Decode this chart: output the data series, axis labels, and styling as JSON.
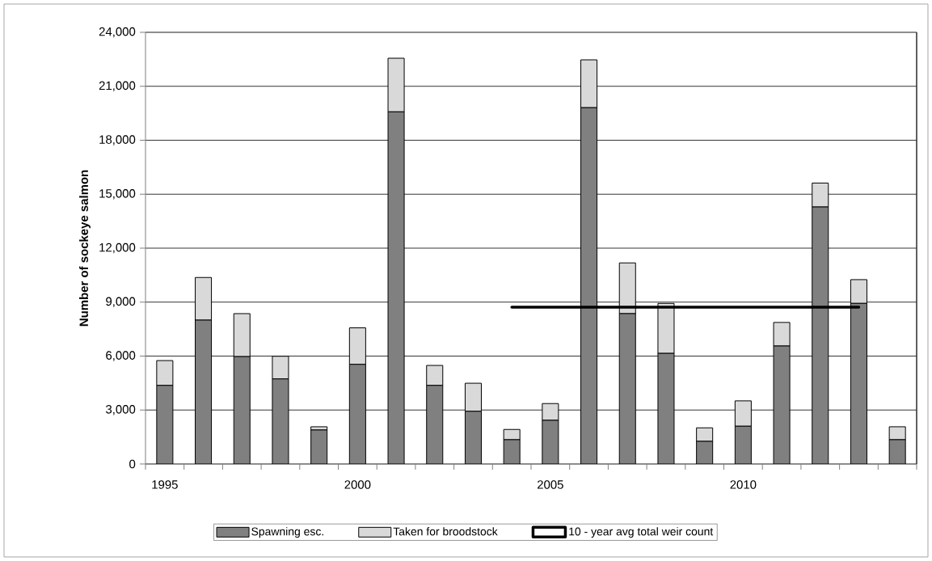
{
  "chart_data": {
    "type": "bar",
    "stacked": true,
    "ylabel": "Number of sockeye salmon",
    "categories": [
      "1995",
      null,
      null,
      null,
      null,
      "2000",
      null,
      null,
      null,
      null,
      "2005",
      null,
      null,
      null,
      null,
      "2010",
      null,
      null,
      null,
      null
    ],
    "series": [
      {
        "name": "Spawning esc.",
        "color": "#808080",
        "values": [
          4370,
          8000,
          5970,
          4730,
          1890,
          5540,
          19580,
          4370,
          2930,
          1350,
          2430,
          19810,
          8360,
          6150,
          1260,
          2100,
          6560,
          14290,
          8930,
          1350
        ]
      },
      {
        "name": "Taken for broodstock",
        "color": "#d9d9d9",
        "values": [
          1380,
          2370,
          2390,
          1260,
          180,
          2030,
          2980,
          1110,
          1560,
          570,
          930,
          2660,
          2820,
          2780,
          750,
          1410,
          1310,
          1330,
          1320,
          720
        ]
      },
      {
        "name": "10 - year avg total weir count",
        "type": "line",
        "color": "#000000",
        "values": [
          null,
          null,
          null,
          null,
          null,
          null,
          null,
          null,
          null,
          8720,
          8720,
          8720,
          8720,
          8720,
          8720,
          8720,
          8720,
          8720,
          8720,
          null
        ]
      }
    ],
    "ylim": [
      0,
      24000
    ],
    "yticks": [
      0,
      {
        "value": 3000,
        "label": "3,000"
      },
      {
        "value": 6000,
        "label": "6,000"
      },
      {
        "value": 9000,
        "label": "9,000"
      },
      {
        "value": 12000,
        "label": "12,000"
      },
      {
        "value": 15000,
        "label": "15,000"
      },
      {
        "value": 18000,
        "label": "18,000"
      },
      {
        "value": 21000,
        "label": "21,000"
      },
      {
        "value": 24000,
        "label": "24,000"
      }
    ],
    "grid": "y",
    "legend": "bottom"
  }
}
